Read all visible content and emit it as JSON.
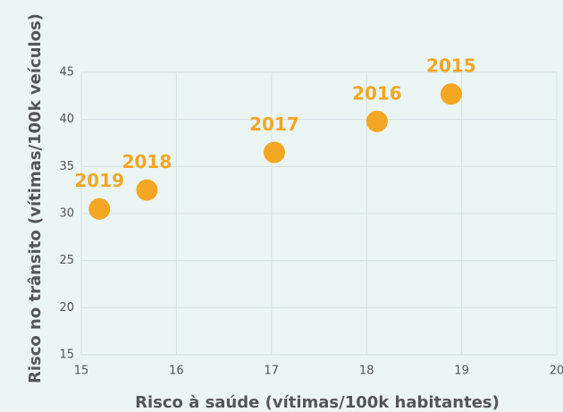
{
  "chart_data": {
    "type": "scatter",
    "x_label": "Risco à saúde (vítimas/100k habitantes)",
    "y_label": "Risco no trânsito (vítimas/100k veículos)",
    "x": [
      15.19,
      15.69,
      17.03,
      18.11,
      18.89
    ],
    "values": [
      30.5,
      32.5,
      36.5,
      39.8,
      42.7
    ],
    "labels": [
      "2019",
      "2018",
      "2017",
      "2016",
      "2015"
    ],
    "color": "#f5a623",
    "xlim": [
      15,
      20
    ],
    "xticks": [
      15,
      16,
      17,
      18,
      19,
      20
    ],
    "ylim": [
      15,
      45
    ],
    "yticks": [
      15,
      20,
      25,
      30,
      35,
      40,
      45
    ],
    "grid": true
  }
}
